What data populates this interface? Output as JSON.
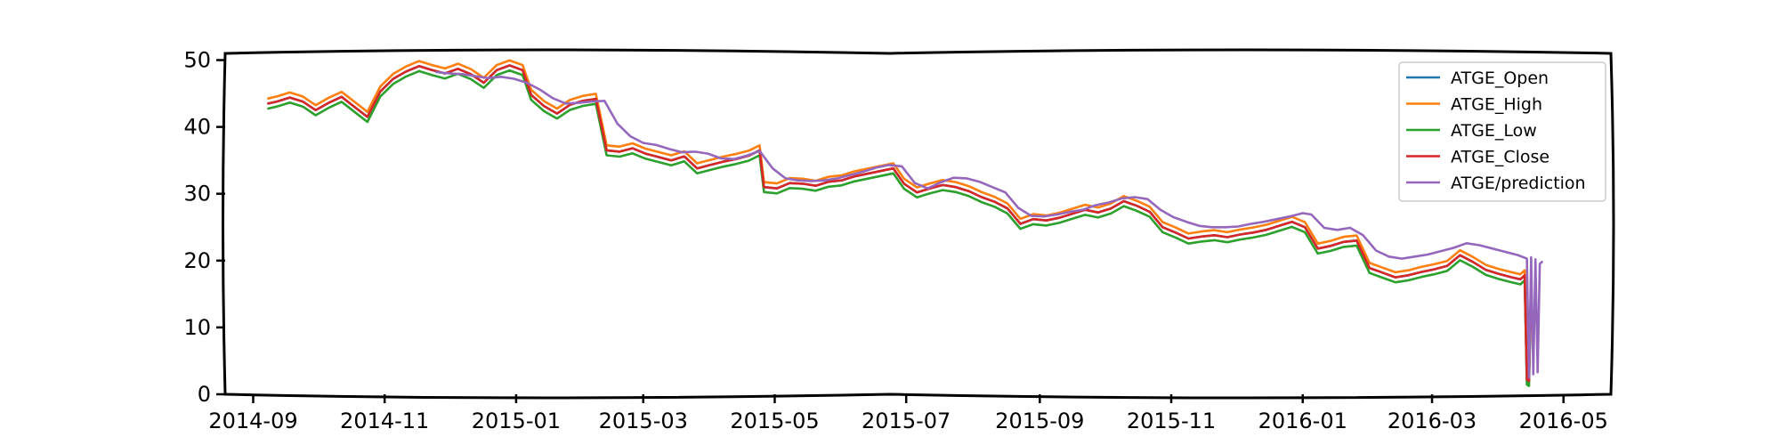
{
  "chart_data": {
    "type": "line",
    "title": "",
    "xlabel": "",
    "ylabel": "",
    "xlim": [
      "2014-08-19",
      "2016-05-23"
    ],
    "ylim": [
      0,
      51
    ],
    "grid": false,
    "legend_position": "top-right",
    "y_ticks": [
      {
        "value": 0,
        "label": "0"
      },
      {
        "value": 10,
        "label": "10"
      },
      {
        "value": 20,
        "label": "20"
      },
      {
        "value": 30,
        "label": "30"
      },
      {
        "value": 40,
        "label": "40"
      },
      {
        "value": 50,
        "label": "50"
      }
    ],
    "x_ticks": [
      {
        "value": "2014-09-01",
        "label": "2014-09"
      },
      {
        "value": "2014-11-01",
        "label": "2014-11"
      },
      {
        "value": "2015-01-01",
        "label": "2015-01"
      },
      {
        "value": "2015-03-01",
        "label": "2015-03"
      },
      {
        "value": "2015-05-01",
        "label": "2015-05"
      },
      {
        "value": "2015-07-01",
        "label": "2015-07"
      },
      {
        "value": "2015-09-01",
        "label": "2015-09"
      },
      {
        "value": "2015-11-01",
        "label": "2015-11"
      },
      {
        "value": "2016-01-01",
        "label": "2016-01"
      },
      {
        "value": "2016-03-01",
        "label": "2016-03"
      },
      {
        "value": "2016-05-01",
        "label": "2016-05"
      }
    ],
    "close_points": [
      [
        "2014-09-08",
        43.5
      ],
      [
        "2014-09-12",
        43.8
      ],
      [
        "2014-09-18",
        44.4
      ],
      [
        "2014-09-24",
        43.8
      ],
      [
        "2014-09-30",
        42.5
      ],
      [
        "2014-10-06",
        43.6
      ],
      [
        "2014-10-12",
        44.5
      ],
      [
        "2014-10-18",
        43.0
      ],
      [
        "2014-10-24",
        41.5
      ],
      [
        "2014-10-30",
        45.3
      ],
      [
        "2014-11-05",
        47.2
      ],
      [
        "2014-11-11",
        48.3
      ],
      [
        "2014-11-17",
        49.1
      ],
      [
        "2014-11-23",
        48.5
      ],
      [
        "2014-11-29",
        48.0
      ],
      [
        "2014-12-05",
        48.7
      ],
      [
        "2014-12-11",
        47.9
      ],
      [
        "2014-12-17",
        46.6
      ],
      [
        "2014-12-23",
        48.5
      ],
      [
        "2014-12-29",
        49.2
      ],
      [
        "2015-01-04",
        48.5
      ],
      [
        "2015-01-08",
        44.8
      ],
      [
        "2015-01-14",
        43.1
      ],
      [
        "2015-01-20",
        42.0
      ],
      [
        "2015-01-26",
        43.3
      ],
      [
        "2015-02-01",
        43.9
      ],
      [
        "2015-02-07",
        44.2
      ],
      [
        "2015-02-12",
        36.5
      ],
      [
        "2015-02-18",
        36.3
      ],
      [
        "2015-02-24",
        36.8
      ],
      [
        "2015-03-02",
        36.0
      ],
      [
        "2015-03-08",
        35.5
      ],
      [
        "2015-03-14",
        35.0
      ],
      [
        "2015-03-20",
        35.6
      ],
      [
        "2015-03-26",
        33.8
      ],
      [
        "2015-04-01",
        34.3
      ],
      [
        "2015-04-07",
        34.8
      ],
      [
        "2015-04-13",
        35.2
      ],
      [
        "2015-04-19",
        35.7
      ],
      [
        "2015-04-24",
        36.5
      ],
      [
        "2015-04-26",
        31.0
      ],
      [
        "2015-05-02",
        30.8
      ],
      [
        "2015-05-08",
        31.6
      ],
      [
        "2015-05-14",
        31.5
      ],
      [
        "2015-05-20",
        31.2
      ],
      [
        "2015-05-26",
        31.8
      ],
      [
        "2015-06-01",
        32.0
      ],
      [
        "2015-06-07",
        32.6
      ],
      [
        "2015-06-13",
        33.0
      ],
      [
        "2015-06-19",
        33.4
      ],
      [
        "2015-06-25",
        33.8
      ],
      [
        "2015-06-30",
        31.5
      ],
      [
        "2015-07-06",
        30.2
      ],
      [
        "2015-07-12",
        30.8
      ],
      [
        "2015-07-18",
        31.3
      ],
      [
        "2015-07-24",
        31.0
      ],
      [
        "2015-07-30",
        30.4
      ],
      [
        "2015-08-05",
        29.5
      ],
      [
        "2015-08-11",
        28.8
      ],
      [
        "2015-08-17",
        27.8
      ],
      [
        "2015-08-23",
        25.5
      ],
      [
        "2015-08-29",
        26.2
      ],
      [
        "2015-09-04",
        26.0
      ],
      [
        "2015-09-10",
        26.4
      ],
      [
        "2015-09-16",
        27.0
      ],
      [
        "2015-09-22",
        27.6
      ],
      [
        "2015-09-28",
        27.2
      ],
      [
        "2015-10-04",
        27.8
      ],
      [
        "2015-10-10",
        28.9
      ],
      [
        "2015-10-16",
        28.2
      ],
      [
        "2015-10-22",
        27.3
      ],
      [
        "2015-10-28",
        25.0
      ],
      [
        "2015-11-03",
        24.2
      ],
      [
        "2015-11-09",
        23.3
      ],
      [
        "2015-11-15",
        23.6
      ],
      [
        "2015-11-21",
        23.8
      ],
      [
        "2015-11-27",
        23.5
      ],
      [
        "2015-12-03",
        23.9
      ],
      [
        "2015-12-09",
        24.2
      ],
      [
        "2015-12-15",
        24.6
      ],
      [
        "2015-12-21",
        25.2
      ],
      [
        "2015-12-27",
        25.8
      ],
      [
        "2016-01-02",
        25.0
      ],
      [
        "2016-01-08",
        21.8
      ],
      [
        "2016-01-14",
        22.2
      ],
      [
        "2016-01-20",
        22.8
      ],
      [
        "2016-01-26",
        23.0
      ],
      [
        "2016-02-01",
        18.9
      ],
      [
        "2016-02-07",
        18.2
      ],
      [
        "2016-02-13",
        17.5
      ],
      [
        "2016-02-19",
        17.8
      ],
      [
        "2016-02-25",
        18.3
      ],
      [
        "2016-03-02",
        18.7
      ],
      [
        "2016-03-08",
        19.2
      ],
      [
        "2016-03-14",
        20.8
      ],
      [
        "2016-03-20",
        19.8
      ],
      [
        "2016-03-26",
        18.6
      ],
      [
        "2016-04-01",
        18.0
      ],
      [
        "2016-04-07",
        17.5
      ],
      [
        "2016-04-11",
        17.2
      ],
      [
        "2016-04-13",
        17.8
      ],
      [
        "2016-04-14",
        2.2
      ],
      [
        "2016-04-15",
        2.0
      ],
      [
        "2016-04-16",
        17.2
      ]
    ],
    "pred_points": [
      [
        "2014-11-25",
        48.2
      ],
      [
        "2014-12-01",
        48.0
      ],
      [
        "2014-12-07",
        47.9
      ],
      [
        "2014-12-13",
        47.6
      ],
      [
        "2014-12-19",
        47.3
      ],
      [
        "2014-12-25",
        47.5
      ],
      [
        "2014-12-31",
        47.2
      ],
      [
        "2015-01-06",
        46.6
      ],
      [
        "2015-01-12",
        45.6
      ],
      [
        "2015-01-18",
        44.3
      ],
      [
        "2015-01-24",
        43.5
      ],
      [
        "2015-01-30",
        43.6
      ],
      [
        "2015-02-05",
        43.8
      ],
      [
        "2015-02-11",
        43.9
      ],
      [
        "2015-02-17",
        40.5
      ],
      [
        "2015-02-23",
        38.6
      ],
      [
        "2015-03-01",
        37.6
      ],
      [
        "2015-03-07",
        37.3
      ],
      [
        "2015-03-13",
        36.7
      ],
      [
        "2015-03-19",
        36.2
      ],
      [
        "2015-03-25",
        36.3
      ],
      [
        "2015-03-31",
        36.0
      ],
      [
        "2015-04-06",
        35.3
      ],
      [
        "2015-04-12",
        35.2
      ],
      [
        "2015-04-18",
        35.7
      ],
      [
        "2015-04-24",
        36.4
      ],
      [
        "2015-04-30",
        33.8
      ],
      [
        "2015-05-06",
        32.3
      ],
      [
        "2015-05-12",
        32.0
      ],
      [
        "2015-05-18",
        31.9
      ],
      [
        "2015-05-24",
        32.0
      ],
      [
        "2015-05-30",
        32.3
      ],
      [
        "2015-06-05",
        32.8
      ],
      [
        "2015-06-11",
        33.3
      ],
      [
        "2015-06-17",
        33.9
      ],
      [
        "2015-06-23",
        34.3
      ],
      [
        "2015-06-29",
        34.1
      ],
      [
        "2015-07-05",
        31.6
      ],
      [
        "2015-07-11",
        30.8
      ],
      [
        "2015-07-17",
        31.7
      ],
      [
        "2015-07-23",
        32.4
      ],
      [
        "2015-07-29",
        32.3
      ],
      [
        "2015-08-04",
        31.8
      ],
      [
        "2015-08-10",
        31.0
      ],
      [
        "2015-08-16",
        30.2
      ],
      [
        "2015-08-22",
        27.9
      ],
      [
        "2015-08-28",
        26.7
      ],
      [
        "2015-09-03",
        26.6
      ],
      [
        "2015-09-09",
        26.9
      ],
      [
        "2015-09-15",
        27.3
      ],
      [
        "2015-09-21",
        27.6
      ],
      [
        "2015-09-27",
        28.3
      ],
      [
        "2015-10-03",
        28.7
      ],
      [
        "2015-10-09",
        29.3
      ],
      [
        "2015-10-15",
        29.5
      ],
      [
        "2015-10-21",
        29.2
      ],
      [
        "2015-10-27",
        27.6
      ],
      [
        "2015-11-02",
        26.5
      ],
      [
        "2015-11-08",
        25.8
      ],
      [
        "2015-11-14",
        25.2
      ],
      [
        "2015-11-20",
        25.0
      ],
      [
        "2015-11-26",
        25.0
      ],
      [
        "2015-12-02",
        25.1
      ],
      [
        "2015-12-08",
        25.5
      ],
      [
        "2015-12-14",
        25.8
      ],
      [
        "2015-12-20",
        26.2
      ],
      [
        "2015-12-26",
        26.6
      ],
      [
        "2016-01-01",
        27.1
      ],
      [
        "2016-01-05",
        26.9
      ],
      [
        "2016-01-11",
        24.9
      ],
      [
        "2016-01-17",
        24.6
      ],
      [
        "2016-01-23",
        24.9
      ],
      [
        "2016-01-29",
        23.8
      ],
      [
        "2016-02-04",
        21.5
      ],
      [
        "2016-02-10",
        20.6
      ],
      [
        "2016-02-16",
        20.3
      ],
      [
        "2016-02-22",
        20.6
      ],
      [
        "2016-02-28",
        20.9
      ],
      [
        "2016-03-05",
        21.4
      ],
      [
        "2016-03-11",
        21.9
      ],
      [
        "2016-03-17",
        22.6
      ],
      [
        "2016-03-23",
        22.3
      ],
      [
        "2016-03-29",
        21.8
      ],
      [
        "2016-04-04",
        21.3
      ],
      [
        "2016-04-10",
        20.8
      ],
      [
        "2016-04-14",
        20.3
      ],
      [
        "2016-04-15",
        2.5
      ],
      [
        "2016-04-16",
        20.5
      ],
      [
        "2016-04-17",
        3.0
      ],
      [
        "2016-04-18",
        20.2
      ],
      [
        "2016-04-19",
        3.3
      ],
      [
        "2016-04-20",
        19.5
      ],
      [
        "2016-04-21",
        19.8
      ]
    ],
    "series": [
      {
        "name": "ATGE_Open",
        "color": "#1f77b4",
        "source": "close_points",
        "offset": 0.0
      },
      {
        "name": "ATGE_High",
        "color": "#ff7f0e",
        "source": "close_points",
        "offset": 0.75
      },
      {
        "name": "ATGE_Low",
        "color": "#2ca02c",
        "source": "close_points",
        "offset": -0.75
      },
      {
        "name": "ATGE_Close",
        "color": "#d62728",
        "source": "close_points",
        "offset": 0.0
      },
      {
        "name": "ATGE/prediction",
        "color": "#9467bd",
        "source": "pred_points",
        "offset": 0.0
      }
    ]
  }
}
